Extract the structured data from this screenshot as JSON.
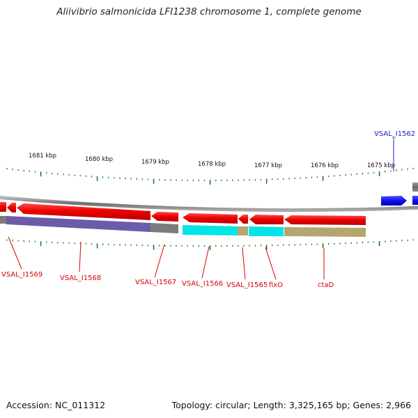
{
  "title": "Aliivibrio salmonicida LFI1238 chromosome 1, complete genome",
  "accession": "Accession: NC_011312",
  "summary": "Topology: circular; Length: 3,325,165 bp; Genes: 2,966",
  "colors": {
    "forward_gene": "#1c1cf0",
    "reverse_gene": "#e60000",
    "backbone": "#888888",
    "tick": "#1f7a1f",
    "cds_purple": "#5a4aa0",
    "cds_gray": "#6e6e6e",
    "cds_cyan": "#00e5e5",
    "cds_khaki": "#b4a66e",
    "label_forward": "#1c1cc8",
    "label_reverse": "#d40000"
  },
  "kbp_ticks": [
    "1681 kbp",
    "1680 kbp",
    "1679 kbp",
    "1678 kbp",
    "1677 kbp",
    "1676 kbp",
    "1675 kbp"
  ],
  "gene_labels": [
    {
      "id": "VSAL_I1562",
      "strand": "forward"
    },
    {
      "id": "VSAL_I1569",
      "strand": "reverse"
    },
    {
      "id": "VSAL_I1568",
      "strand": "reverse"
    },
    {
      "id": "VSAL_I1567",
      "strand": "reverse"
    },
    {
      "id": "VSAL_I1566",
      "strand": "reverse"
    },
    {
      "id": "VSAL_I1565",
      "strand": "reverse"
    },
    {
      "id": "fixO",
      "strand": "reverse"
    },
    {
      "id": "ctaD",
      "strand": "reverse"
    }
  ]
}
